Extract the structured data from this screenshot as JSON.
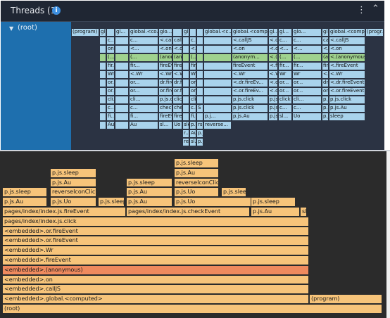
{
  "header": {
    "title": "Threads (1)",
    "info_glyph": "i",
    "more_glyph": "⋮",
    "collapse_glyph": "⌃"
  },
  "thread": {
    "root_label": "(root)",
    "expand_glyph": "▼"
  },
  "colors": {
    "mini_js": "#a9d3ec",
    "mini_green": "#9fd28e",
    "flame": "#f7c47a",
    "flame_selected": "#ef8a5e",
    "bottom_bg": "#2b2b2b",
    "top_bg": "#2b3343",
    "root_bg": "#1e6fae"
  },
  "minimap": {
    "rows": [
      {
        "label": "row0",
        "cells": [
          {
            "t": "(program)"
          },
          {
            "t": "gl..."
          },
          {
            "t": ""
          },
          {
            "t": "gl..."
          },
          {
            "t": "global.<co..."
          },
          {
            "t": "glo..."
          },
          {
            "t": ""
          },
          {
            "t": "gl..."
          },
          {
            "t": ""
          },
          {
            "t": ""
          },
          {
            "t": "global.<c..."
          },
          {
            "t": "global.<compu..."
          },
          {
            "t": "gl..."
          },
          {
            "t": "gl..."
          },
          {
            "t": "glo..."
          },
          {
            "t": "gl..."
          },
          {
            "t": "global.<compu..."
          },
          {
            "t": "(progr..."
          }
        ]
      },
      {
        "label": "row1",
        "cells": [
          {
            "t": ""
          },
          {
            "t": "c..."
          },
          {
            "t": ""
          },
          {
            "t": "c..."
          },
          {
            "t": "<.callJS"
          },
          {
            "t": "call..."
          },
          {
            "t": ""
          },
          {
            "t": "c..."
          },
          {
            "t": ""
          },
          {
            "t": ""
          },
          {
            "t": "<.callJS"
          },
          {
            "t": "<.callJS"
          },
          {
            "t": "c..."
          },
          {
            "t": "c..."
          },
          {
            "t": "call..."
          },
          {
            "t": "c..."
          },
          {
            "t": "<.callJS"
          }
        ]
      },
      {
        "label": "row2",
        "cells": [
          {
            "t": ""
          },
          {
            "t": "on"
          },
          {
            "t": ""
          },
          {
            "t": "<..."
          },
          {
            "t": "<.on"
          },
          {
            "t": "<.on"
          },
          {
            "t": ""
          },
          {
            "t": "<..."
          },
          {
            "t": ""
          },
          {
            "t": ""
          },
          {
            "t": "<.on"
          },
          {
            "t": "<.on"
          },
          {
            "t": "<..."
          },
          {
            "t": "<..."
          },
          {
            "t": "<.on"
          },
          {
            "t": "<..."
          },
          {
            "t": "<.on"
          }
        ]
      },
      {
        "label": "row3",
        "cells": [
          {
            "t": ""
          },
          {
            "t": "(..."
          },
          {
            "t": ""
          },
          {
            "t": "(..."
          },
          {
            "t": "(anonym..."
          },
          {
            "t": "(ano..."
          },
          {
            "t": ""
          },
          {
            "t": "(..."
          },
          {
            "t": ""
          },
          {
            "t": ""
          },
          {
            "t": "(anonym..."
          },
          {
            "t": "<.(anonymo..."
          },
          {
            "t": "(..."
          },
          {
            "t": "(..."
          },
          {
            "t": "(ano..."
          },
          {
            "t": "(..."
          },
          {
            "t": "<.(anonymous)"
          }
        ]
      },
      {
        "label": "row4",
        "cells": [
          {
            "t": ""
          },
          {
            "t": "fir..."
          },
          {
            "t": ""
          },
          {
            "t": "fir..."
          },
          {
            "t": "fireEvent"
          },
          {
            "t": "fire..."
          },
          {
            "t": ""
          },
          {
            "t": "fir..."
          },
          {
            "t": ""
          },
          {
            "t": ""
          },
          {
            "t": "fireEvent"
          },
          {
            "t": "<.fireEvent"
          },
          {
            "t": "fir..."
          },
          {
            "t": "fir..."
          },
          {
            "t": "fire..."
          },
          {
            "t": "fir..."
          },
          {
            "t": "<.fireEvent"
          }
        ]
      },
      {
        "label": "row5",
        "cells": [
          {
            "t": ""
          },
          {
            "t": "Wr"
          },
          {
            "t": ""
          },
          {
            "t": "<.Wr"
          },
          {
            "t": "<.Wr"
          },
          {
            "t": "<.Wr"
          },
          {
            "t": ""
          },
          {
            "t": "Wr"
          },
          {
            "t": ""
          },
          {
            "t": ""
          },
          {
            "t": "<.Wr"
          },
          {
            "t": "<.Wr"
          },
          {
            "t": "Wr"
          },
          {
            "t": "Wr"
          },
          {
            "t": "<.Wr"
          },
          {
            "t": "Wr"
          },
          {
            "t": "<.Wr"
          }
        ]
      },
      {
        "label": "row6",
        "cells": [
          {
            "t": ""
          },
          {
            "t": "or..."
          },
          {
            "t": ""
          },
          {
            "t": "or..."
          },
          {
            "t": "dr.fireEv..."
          },
          {
            "t": "dr.fir..."
          },
          {
            "t": ""
          },
          {
            "t": "or..."
          },
          {
            "t": ""
          },
          {
            "t": ""
          },
          {
            "t": "<.dr.fireEv..."
          },
          {
            "t": "<.dr.fireEvent"
          },
          {
            "t": "or..."
          },
          {
            "t": "or..."
          },
          {
            "t": "dr.fir..."
          },
          {
            "t": "or..."
          },
          {
            "t": "<.dr.fireEvent"
          }
        ]
      },
      {
        "label": "row7",
        "cells": [
          {
            "t": ""
          },
          {
            "t": "or..."
          },
          {
            "t": ""
          },
          {
            "t": "or..."
          },
          {
            "t": "or.fireEv..."
          },
          {
            "t": "or.fir..."
          },
          {
            "t": ""
          },
          {
            "t": "or..."
          },
          {
            "t": ""
          },
          {
            "t": ""
          },
          {
            "t": "<.or.fireEv..."
          },
          {
            "t": "<.or.fireEvent"
          },
          {
            "t": "or..."
          },
          {
            "t": "or..."
          },
          {
            "t": "or.fir..."
          },
          {
            "t": "or..."
          },
          {
            "t": "<.or.fireEvent"
          }
        ]
      },
      {
        "label": "row8",
        "cells": [
          {
            "t": ""
          },
          {
            "t": "cli..."
          },
          {
            "t": ""
          },
          {
            "t": "cli..."
          },
          {
            "t": "p.js.click"
          },
          {
            "t": "click"
          },
          {
            "t": ""
          },
          {
            "t": "cli..."
          },
          {
            "t": ""
          },
          {
            "t": ""
          },
          {
            "t": "p.js.click"
          },
          {
            "t": "p.js.click"
          },
          {
            "t": "click"
          },
          {
            "t": "cli..."
          },
          {
            "t": "p.js.click"
          },
          {
            "t": "cli..."
          },
          {
            "t": "p.js.click"
          }
        ]
      },
      {
        "label": "row9",
        "cells": [
          {
            "t": ""
          },
          {
            "t": "c..."
          },
          {
            "t": ""
          },
          {
            "t": "c..."
          },
          {
            "t": "checkEve..."
          },
          {
            "t": "chec..."
          },
          {
            "t": ""
          },
          {
            "t": "c..."
          },
          {
            "t": "S"
          },
          {
            "t": ""
          },
          {
            "t": "p.js.click"
          },
          {
            "t": "p.js.click"
          },
          {
            "t": "c..."
          },
          {
            "t": "c..."
          },
          {
            "t": "p.js.click"
          },
          {
            "t": "c..."
          },
          {
            "t": "p.js.Au"
          }
        ]
      },
      {
        "label": "row10",
        "cells": [
          {
            "t": ""
          },
          {
            "t": "fi..."
          },
          {
            "t": ""
          },
          {
            "t": "fi..."
          },
          {
            "t": "fireEvent"
          },
          {
            "t": "fire..."
          },
          {
            "t": ""
          },
          {
            "t": "fi..."
          },
          {
            "t": ""
          },
          {
            "t": "p.j..."
          },
          {
            "t": "p.js.Au"
          },
          {
            "t": "p.js.Au"
          },
          {
            "t": "sl..."
          },
          {
            "t": "Uo"
          },
          {
            "t": "p.js.Uo"
          },
          {
            "t": "sleep"
          }
        ]
      },
      {
        "label": "row11",
        "cells": [
          {
            "t": ""
          },
          {
            "t": "Au"
          },
          {
            "t": ""
          },
          {
            "t": "Au"
          },
          {
            "t": "sl..."
          },
          {
            "t": "Uo"
          },
          {
            "t": "sleep"
          },
          {
            "t": "p.js.sleep"
          },
          {
            "t": "rs..."
          },
          {
            "t": "reverse..."
          }
        ]
      },
      {
        "label": "row12",
        "cells": [
          {
            "t": "r..."
          },
          {
            "t": "Au"
          },
          {
            "t": "p.js.Au"
          }
        ]
      },
      {
        "label": "row13",
        "cells": [
          {
            "t": "re..."
          },
          {
            "t": "sl..."
          },
          {
            "t": "p.js.sleep"
          }
        ]
      }
    ]
  },
  "flame": {
    "rows": [
      {
        "cells": [
          {
            "t": "p.js.sleep"
          }
        ]
      },
      {
        "cells": [
          {
            "t": "p.js.sleep"
          },
          {
            "t": "p.js.Au"
          }
        ]
      },
      {
        "cells": [
          {
            "t": "p.js.Au"
          },
          {
            "t": "p.js.sleep"
          },
          {
            "t": "reverseIconClick"
          }
        ]
      },
      {
        "cells": [
          {
            "t": "p.js.sleep"
          },
          {
            "t": "reverseIconClick"
          },
          {
            "t": "p.js.Au"
          },
          {
            "t": "p.js.Uo"
          },
          {
            "t": "p.js.sleep"
          }
        ]
      },
      {
        "cells": [
          {
            "t": "p.js.Au"
          },
          {
            "t": "p.js.Uo"
          },
          {
            "t": "p.js.sleep"
          },
          {
            "t": "p.js.Au"
          },
          {
            "t": "p.js.Uo"
          },
          {
            "t": "p.js.sleep"
          }
        ]
      },
      {
        "cells": [
          {
            "t": "pages/index/index.js.fireEvent"
          },
          {
            "t": "pages/index/index.js.checkEvent"
          },
          {
            "t": "p.js.Au"
          },
          {
            "t": "sl..."
          }
        ]
      },
      {
        "cells": [
          {
            "t": "pages/index/index.js.click"
          }
        ]
      },
      {
        "cells": [
          {
            "t": "<embedded>.or.fireEvent"
          }
        ]
      },
      {
        "cells": [
          {
            "t": "<embedded>.or.fireEvent"
          }
        ]
      },
      {
        "cells": [
          {
            "t": "<embedded>.Wr"
          }
        ]
      },
      {
        "cells": [
          {
            "t": "<embedded>.fireEvent"
          }
        ]
      },
      {
        "cells": [
          {
            "t": "<embedded>.(anonymous)"
          }
        ]
      },
      {
        "cells": [
          {
            "t": "<embedded>.on"
          }
        ]
      },
      {
        "cells": [
          {
            "t": "<embedded>.callJS"
          }
        ]
      },
      {
        "cells": [
          {
            "t": "<embedded>.global.<computed>"
          },
          {
            "t": "(program)"
          }
        ]
      },
      {
        "cells": [
          {
            "t": "(root)"
          }
        ]
      }
    ]
  }
}
